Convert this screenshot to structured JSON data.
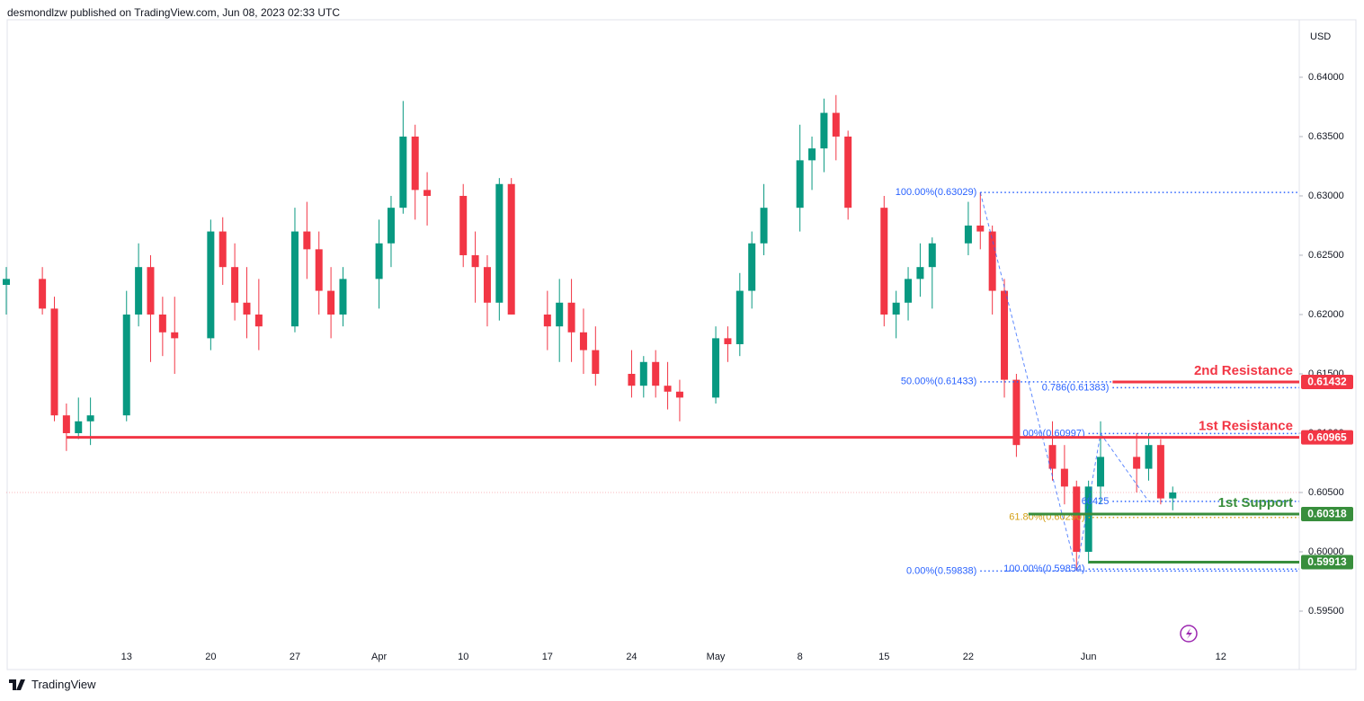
{
  "header": {
    "text": "desmondlzw published on TradingView.com, Jun 08, 2023 02:33 UTC"
  },
  "chart_data": {
    "type": "candlestick",
    "currency": "USD",
    "up_color": "#089981",
    "down_color": "#f23645",
    "grid": false,
    "xlim": [
      "2023-03-03",
      "2023-06-18"
    ],
    "ylim": [
      0.59,
      0.6448
    ],
    "yticks": [
      {
        "value": 0.595,
        "label": "0.59500"
      },
      {
        "value": 0.6,
        "label": "0.60000"
      },
      {
        "value": 0.605,
        "label": "0.60500"
      },
      {
        "value": 0.61,
        "label": "0.61000"
      },
      {
        "value": 0.615,
        "label": "0.61500"
      },
      {
        "value": 0.62,
        "label": "0.62000"
      },
      {
        "value": 0.625,
        "label": "0.62500"
      },
      {
        "value": 0.63,
        "label": "0.63000"
      },
      {
        "value": 0.635,
        "label": "0.63500"
      },
      {
        "value": 0.64,
        "label": "0.64000"
      }
    ],
    "xticks": [
      {
        "value": "2023-03-13",
        "label": "13"
      },
      {
        "value": "2023-03-20",
        "label": "20"
      },
      {
        "value": "2023-03-27",
        "label": "27"
      },
      {
        "value": "2023-04-03",
        "label": "Apr"
      },
      {
        "value": "2023-04-10",
        "label": "10"
      },
      {
        "value": "2023-04-17",
        "label": "17"
      },
      {
        "value": "2023-04-24",
        "label": "24"
      },
      {
        "value": "2023-05-01",
        "label": "May"
      },
      {
        "value": "2023-05-08",
        "label": "8"
      },
      {
        "value": "2023-05-15",
        "label": "15"
      },
      {
        "value": "2023-05-22",
        "label": "22"
      },
      {
        "value": "2023-06-01",
        "label": "Jun"
      },
      {
        "value": "2023-06-12",
        "label": "12"
      }
    ],
    "candles": [
      {
        "x": "2023-03-03",
        "open": 0.6225,
        "high": 0.624,
        "low": 0.62,
        "close": 0.623
      },
      {
        "x": "2023-03-06",
        "open": 0.623,
        "high": 0.624,
        "low": 0.62,
        "close": 0.6205
      },
      {
        "x": "2023-03-07",
        "open": 0.6205,
        "high": 0.6215,
        "low": 0.611,
        "close": 0.6115
      },
      {
        "x": "2023-03-08",
        "open": 0.6115,
        "high": 0.6125,
        "low": 0.6085,
        "close": 0.61
      },
      {
        "x": "2023-03-09",
        "open": 0.61,
        "high": 0.613,
        "low": 0.6095,
        "close": 0.611
      },
      {
        "x": "2023-03-10",
        "open": 0.611,
        "high": 0.613,
        "low": 0.609,
        "close": 0.6115
      },
      {
        "x": "2023-03-13",
        "open": 0.6115,
        "high": 0.622,
        "low": 0.611,
        "close": 0.62
      },
      {
        "x": "2023-03-14",
        "open": 0.62,
        "high": 0.626,
        "low": 0.619,
        "close": 0.624
      },
      {
        "x": "2023-03-15",
        "open": 0.624,
        "high": 0.625,
        "low": 0.616,
        "close": 0.62
      },
      {
        "x": "2023-03-16",
        "open": 0.62,
        "high": 0.6215,
        "low": 0.6165,
        "close": 0.6185
      },
      {
        "x": "2023-03-17",
        "open": 0.6185,
        "high": 0.6215,
        "low": 0.615,
        "close": 0.618
      },
      {
        "x": "2023-03-20",
        "open": 0.618,
        "high": 0.628,
        "low": 0.617,
        "close": 0.627
      },
      {
        "x": "2023-03-21",
        "open": 0.627,
        "high": 0.6282,
        "low": 0.6225,
        "close": 0.624
      },
      {
        "x": "2023-03-22",
        "open": 0.624,
        "high": 0.626,
        "low": 0.6195,
        "close": 0.621
      },
      {
        "x": "2023-03-23",
        "open": 0.621,
        "high": 0.624,
        "low": 0.618,
        "close": 0.62
      },
      {
        "x": "2023-03-24",
        "open": 0.62,
        "high": 0.623,
        "low": 0.617,
        "close": 0.619
      },
      {
        "x": "2023-03-27",
        "open": 0.619,
        "high": 0.629,
        "low": 0.6185,
        "close": 0.627
      },
      {
        "x": "2023-03-28",
        "open": 0.627,
        "high": 0.6295,
        "low": 0.623,
        "close": 0.6255
      },
      {
        "x": "2023-03-29",
        "open": 0.6255,
        "high": 0.627,
        "low": 0.62,
        "close": 0.622
      },
      {
        "x": "2023-03-30",
        "open": 0.622,
        "high": 0.624,
        "low": 0.618,
        "close": 0.62
      },
      {
        "x": "2023-03-31",
        "open": 0.62,
        "high": 0.624,
        "low": 0.619,
        "close": 0.623
      },
      {
        "x": "2023-04-03",
        "open": 0.623,
        "high": 0.628,
        "low": 0.6205,
        "close": 0.626
      },
      {
        "x": "2023-04-04",
        "open": 0.626,
        "high": 0.63,
        "low": 0.624,
        "close": 0.629
      },
      {
        "x": "2023-04-05",
        "open": 0.629,
        "high": 0.638,
        "low": 0.6285,
        "close": 0.635
      },
      {
        "x": "2023-04-06",
        "open": 0.635,
        "high": 0.636,
        "low": 0.628,
        "close": 0.6305
      },
      {
        "x": "2023-04-07",
        "open": 0.6305,
        "high": 0.632,
        "low": 0.6275,
        "close": 0.63
      },
      {
        "x": "2023-04-10",
        "open": 0.63,
        "high": 0.631,
        "low": 0.624,
        "close": 0.625
      },
      {
        "x": "2023-04-11",
        "open": 0.625,
        "high": 0.627,
        "low": 0.621,
        "close": 0.624
      },
      {
        "x": "2023-04-12",
        "open": 0.624,
        "high": 0.625,
        "low": 0.619,
        "close": 0.621
      },
      {
        "x": "2023-04-13",
        "open": 0.621,
        "high": 0.6315,
        "low": 0.6195,
        "close": 0.631
      },
      {
        "x": "2023-04-14",
        "open": 0.631,
        "high": 0.6315,
        "low": 0.62,
        "close": 0.62
      },
      {
        "x": "2023-04-17",
        "open": 0.62,
        "high": 0.622,
        "low": 0.617,
        "close": 0.619
      },
      {
        "x": "2023-04-18",
        "open": 0.619,
        "high": 0.623,
        "low": 0.616,
        "close": 0.621
      },
      {
        "x": "2023-04-19",
        "open": 0.621,
        "high": 0.623,
        "low": 0.616,
        "close": 0.6185
      },
      {
        "x": "2023-04-20",
        "open": 0.6185,
        "high": 0.6205,
        "low": 0.615,
        "close": 0.617
      },
      {
        "x": "2023-04-21",
        "open": 0.617,
        "high": 0.619,
        "low": 0.614,
        "close": 0.615
      },
      {
        "x": "2023-04-24",
        "open": 0.615,
        "high": 0.617,
        "low": 0.613,
        "close": 0.614
      },
      {
        "x": "2023-04-25",
        "open": 0.614,
        "high": 0.6165,
        "low": 0.613,
        "close": 0.616
      },
      {
        "x": "2023-04-26",
        "open": 0.616,
        "high": 0.617,
        "low": 0.613,
        "close": 0.614
      },
      {
        "x": "2023-04-27",
        "open": 0.614,
        "high": 0.616,
        "low": 0.612,
        "close": 0.6135
      },
      {
        "x": "2023-04-28",
        "open": 0.6135,
        "high": 0.6145,
        "low": 0.611,
        "close": 0.613
      },
      {
        "x": "2023-05-01",
        "open": 0.613,
        "high": 0.619,
        "low": 0.6125,
        "close": 0.618
      },
      {
        "x": "2023-05-02",
        "open": 0.618,
        "high": 0.619,
        "low": 0.616,
        "close": 0.6175
      },
      {
        "x": "2023-05-03",
        "open": 0.6175,
        "high": 0.6235,
        "low": 0.6165,
        "close": 0.622
      },
      {
        "x": "2023-05-04",
        "open": 0.622,
        "high": 0.627,
        "low": 0.6205,
        "close": 0.626
      },
      {
        "x": "2023-05-05",
        "open": 0.626,
        "high": 0.631,
        "low": 0.625,
        "close": 0.629
      },
      {
        "x": "2023-05-08",
        "open": 0.629,
        "high": 0.636,
        "low": 0.627,
        "close": 0.633
      },
      {
        "x": "2023-05-09",
        "open": 0.633,
        "high": 0.635,
        "low": 0.6305,
        "close": 0.634
      },
      {
        "x": "2023-05-10",
        "open": 0.634,
        "high": 0.6382,
        "low": 0.632,
        "close": 0.637
      },
      {
        "x": "2023-05-11",
        "open": 0.637,
        "high": 0.6385,
        "low": 0.633,
        "close": 0.635
      },
      {
        "x": "2023-05-12",
        "open": 0.635,
        "high": 0.6355,
        "low": 0.628,
        "close": 0.629
      },
      {
        "x": "2023-05-15",
        "open": 0.629,
        "high": 0.63,
        "low": 0.619,
        "close": 0.62
      },
      {
        "x": "2023-05-16",
        "open": 0.62,
        "high": 0.622,
        "low": 0.618,
        "close": 0.621
      },
      {
        "x": "2023-05-17",
        "open": 0.621,
        "high": 0.624,
        "low": 0.6195,
        "close": 0.623
      },
      {
        "x": "2023-05-18",
        "open": 0.623,
        "high": 0.626,
        "low": 0.6215,
        "close": 0.624
      },
      {
        "x": "2023-05-19",
        "open": 0.624,
        "high": 0.6265,
        "low": 0.6205,
        "close": 0.626
      },
      {
        "x": "2023-05-22",
        "open": 0.626,
        "high": 0.6295,
        "low": 0.625,
        "close": 0.6275
      },
      {
        "x": "2023-05-23",
        "open": 0.6275,
        "high": 0.6303,
        "low": 0.6255,
        "close": 0.627
      },
      {
        "x": "2023-05-24",
        "open": 0.627,
        "high": 0.6275,
        "low": 0.62,
        "close": 0.622
      },
      {
        "x": "2023-05-25",
        "open": 0.622,
        "high": 0.623,
        "low": 0.613,
        "close": 0.6145
      },
      {
        "x": "2023-05-26",
        "open": 0.6145,
        "high": 0.615,
        "low": 0.608,
        "close": 0.609
      },
      {
        "x": "2023-05-29",
        "open": 0.609,
        "high": 0.611,
        "low": 0.606,
        "close": 0.607
      },
      {
        "x": "2023-05-30",
        "open": 0.607,
        "high": 0.609,
        "low": 0.604,
        "close": 0.6055
      },
      {
        "x": "2023-05-31",
        "open": 0.6055,
        "high": 0.606,
        "low": 0.5984,
        "close": 0.6
      },
      {
        "x": "2023-06-01",
        "open": 0.6,
        "high": 0.606,
        "low": 0.599,
        "close": 0.6055
      },
      {
        "x": "2023-06-02",
        "open": 0.6055,
        "high": 0.611,
        "low": 0.604,
        "close": 0.608
      },
      {
        "x": "2023-06-05",
        "open": 0.608,
        "high": 0.61,
        "low": 0.605,
        "close": 0.607
      },
      {
        "x": "2023-06-06",
        "open": 0.607,
        "high": 0.61,
        "low": 0.606,
        "close": 0.609
      },
      {
        "x": "2023-06-07",
        "open": 0.609,
        "high": 0.6095,
        "low": 0.604,
        "close": 0.6045
      },
      {
        "x": "2023-06-08",
        "open": 0.6045,
        "high": 0.6055,
        "low": 0.6035,
        "close": 0.605
      }
    ],
    "levels": [
      {
        "name": "2nd Resistance",
        "value": 0.61432,
        "color": "#f23645",
        "start": "2023-06-03"
      },
      {
        "name": "1st Resistance",
        "value": 0.60965,
        "color": "#f23645",
        "start": "2023-03-08"
      },
      {
        "name": "1st Support",
        "value": 0.60318,
        "color": "#388e3c",
        "start": "2023-05-27"
      },
      {
        "value": 0.59913,
        "color": "#388e3c",
        "start": "2023-06-01"
      }
    ],
    "fib_levels": [
      {
        "label": "100.00%(0.63029)",
        "value": 0.63029,
        "color": "#2962ff",
        "start": "2023-05-23"
      },
      {
        "label": "50.00%(0.61433)",
        "value": 0.61433,
        "color": "#2962ff",
        "start": "2023-05-23",
        "end": "2023-06-03"
      },
      {
        "label": "0.00%(0.59838)",
        "value": 0.59838,
        "color": "#2962ff",
        "start": "2023-05-23"
      },
      {
        "label": "0.786(0.61383)",
        "value": 0.61383,
        "color": "#2962ff",
        "start": "2023-06-03"
      },
      {
        "label": "00%(0.60997)",
        "value": 0.60997,
        "color": "#2962ff",
        "start": "2023-06-01"
      },
      {
        "label": "60425",
        "value": 0.60425,
        "color": "#2962ff",
        "start": "2023-06-03"
      },
      {
        "label": "61.80%(0.60290)",
        "value": 0.6029,
        "color": "#d4a017",
        "start": "2023-06-01"
      },
      {
        "label": "100.00%(0.59854)",
        "value": 0.59854,
        "color": "#2962ff",
        "start": "2023-06-01"
      }
    ],
    "trend_lines": [
      {
        "x1": "2023-05-23",
        "y1": 0.63029,
        "x2": "2023-05-31",
        "y2": 0.59838
      },
      {
        "x1": "2023-05-31",
        "y1": 0.59838,
        "x2": "2023-06-02",
        "y2": 0.60997
      },
      {
        "x1": "2023-06-02",
        "y1": 0.60997,
        "x2": "2023-06-06",
        "y2": 0.60425
      }
    ]
  },
  "footer": {
    "brand": "TradingView"
  }
}
